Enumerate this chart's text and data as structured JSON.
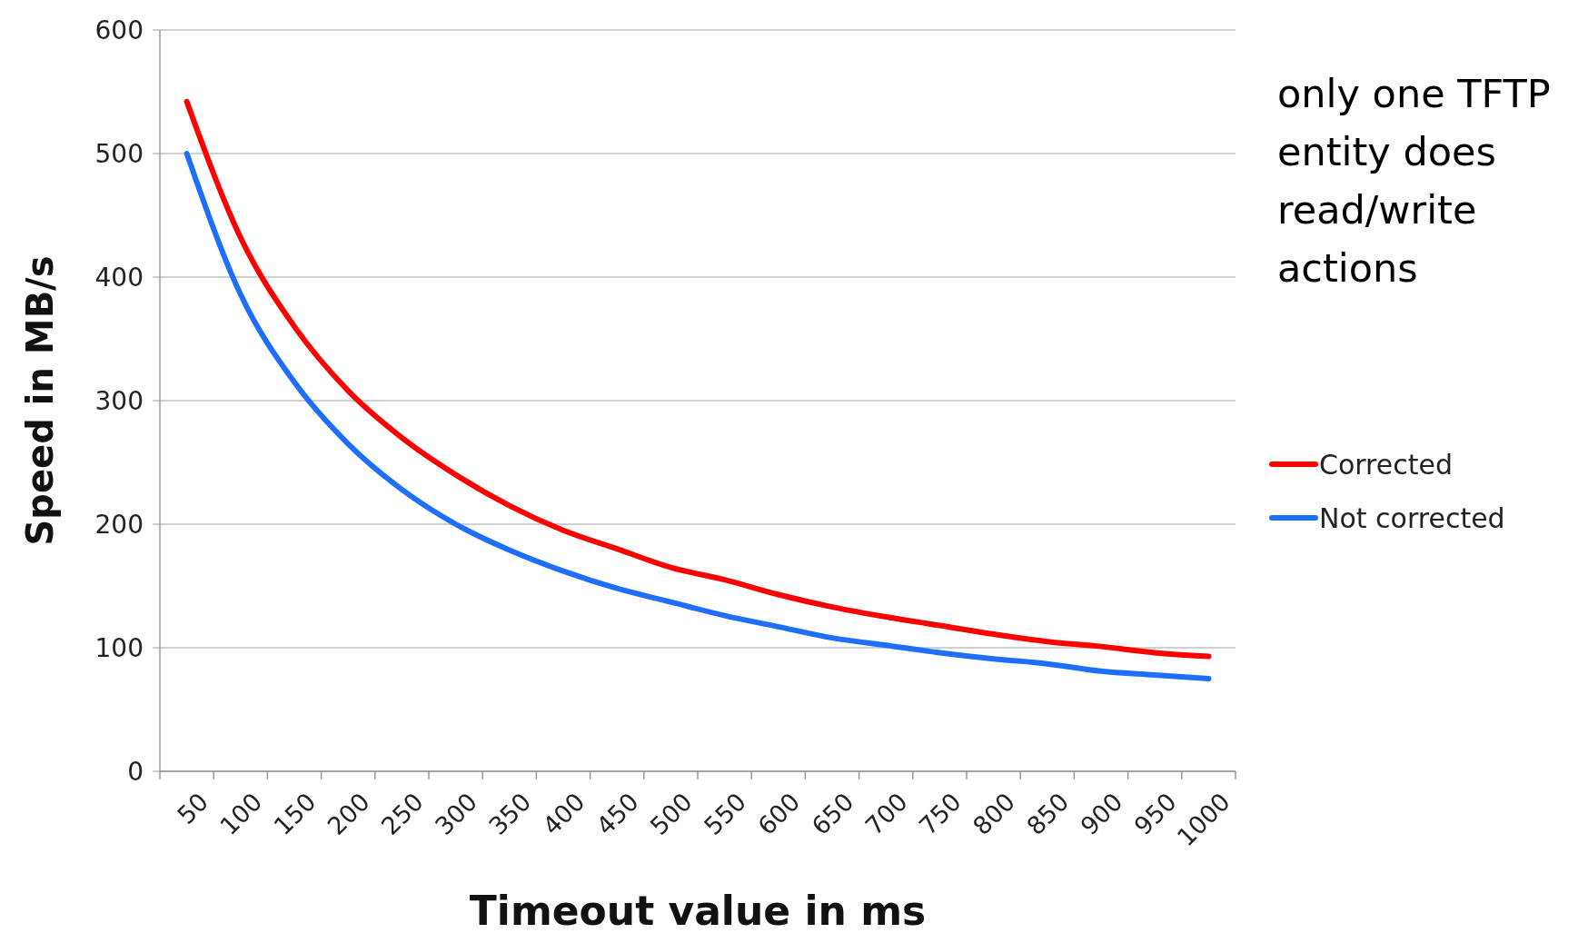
{
  "chart_data": {
    "type": "line",
    "xlabel": "Timeout value in ms",
    "ylabel": "Speed in MB/s",
    "categories": [
      "50",
      "100",
      "150",
      "200",
      "250",
      "300",
      "350",
      "400",
      "450",
      "500",
      "550",
      "600",
      "650",
      "700",
      "750",
      "800",
      "850",
      "900",
      "950",
      "1000"
    ],
    "series": [
      {
        "name": "Corrected",
        "color": "#ff0000",
        "values": [
          542,
          432,
          360,
          308,
          270,
          240,
          215,
          195,
          180,
          165,
          155,
          143,
          133,
          125,
          118,
          111,
          105,
          101,
          96,
          93
        ]
      },
      {
        "name": "Not corrected",
        "color": "#1f6fff",
        "values": [
          500,
          386,
          315,
          265,
          228,
          200,
          179,
          162,
          148,
          137,
          126,
          117,
          108,
          102,
          96,
          91,
          87,
          81,
          78,
          75
        ]
      }
    ],
    "ylim": [
      0,
      600
    ],
    "yticks": [
      0,
      100,
      200,
      300,
      400,
      500,
      600
    ],
    "grid": "y",
    "legend": "right",
    "annotations": [
      "only one TFTP entity does read/write actions"
    ]
  }
}
